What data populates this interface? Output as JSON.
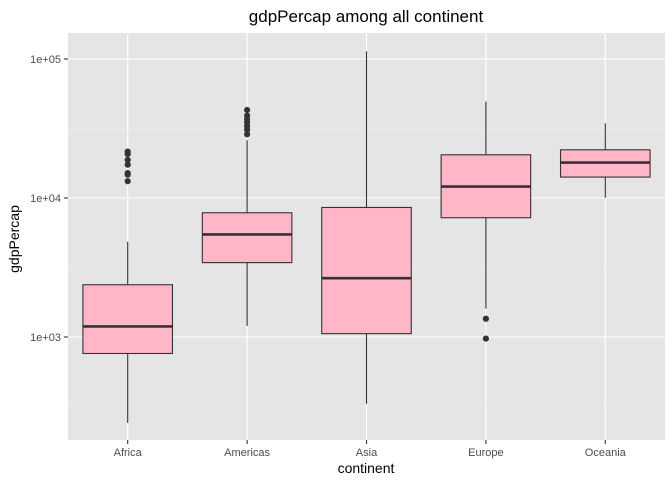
{
  "chart_data": {
    "type": "boxplot",
    "title": "gdpPercap among all continent",
    "xlabel": "continent",
    "ylabel": "gdpPercap",
    "y_scale": "log10",
    "y_ticks": [
      1000,
      10000,
      100000
    ],
    "y_tick_labels": [
      "1e+03",
      "1e+04",
      "1e+05"
    ],
    "grid": true,
    "box_fill": "#FFB6C6",
    "box_stroke": "#333333",
    "panel_background": "#E5E5E5",
    "categories": [
      "Africa",
      "Americas",
      "Asia",
      "Europe",
      "Oceania"
    ],
    "boxes": [
      {
        "category": "Africa",
        "whisker_low": 241,
        "q1": 761,
        "median": 1192,
        "q3": 2377,
        "whisker_high": 4851,
        "outliers": [
          13206,
          14723,
          15113,
          17364,
          18772,
          20690,
          21566
        ]
      },
      {
        "category": "Americas",
        "whisker_low": 1202,
        "q1": 3428,
        "median": 5466,
        "q3": 7831,
        "whisker_high": 26000,
        "outliers": [
          28710,
          31000,
          33000,
          35000,
          36700,
          39100,
          42952
        ]
      },
      {
        "category": "Asia",
        "whisker_low": 331,
        "q1": 1057,
        "median": 2647,
        "q3": 8549,
        "whisker_high": 113523,
        "outliers": []
      },
      {
        "category": "Europe",
        "whisker_low": 1600,
        "q1": 7213,
        "median": 12082,
        "q3": 20461,
        "whisker_high": 49357,
        "outliers": [
          1353,
          974
        ]
      },
      {
        "category": "Oceania",
        "whisker_low": 10040,
        "q1": 14142,
        "median": 17983,
        "q3": 22214,
        "whisker_high": 34435,
        "outliers": []
      }
    ]
  }
}
